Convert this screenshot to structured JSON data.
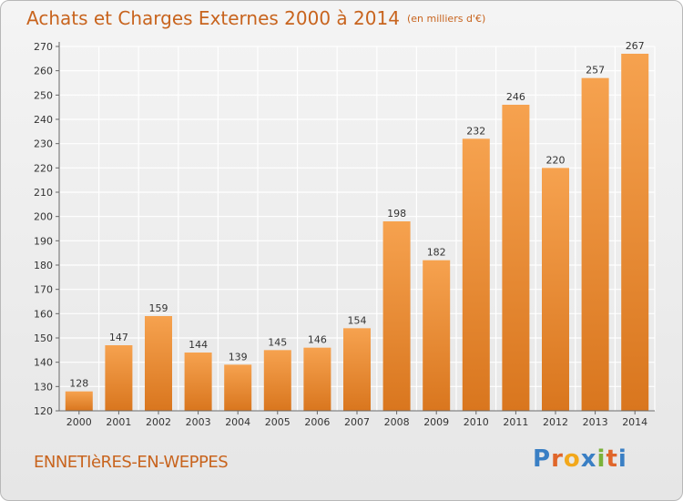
{
  "title": "Achats et Charges Externes 2000 à 2014",
  "subtitle": "(en milliers d'€)",
  "commune": "ENNETIèRES-EN-WEPPES",
  "logo": {
    "letters": [
      "P",
      "r",
      "o",
      "x",
      "i",
      "t",
      "i"
    ],
    "colors": [
      "#3a7fc4",
      "#e0662a",
      "#f2a81c",
      "#3a7fc4",
      "#7bb23a",
      "#e0662a",
      "#3a7fc4"
    ]
  },
  "colors": {
    "bar_top": "#f6a24f",
    "bar_bottom": "#d9761e",
    "text_accent": "#c8641e",
    "grid": "#ffffff"
  },
  "chart_data": {
    "type": "bar",
    "title": "Achats et Charges Externes 2000 à 2014",
    "subtitle": "(en milliers d'€)",
    "categories": [
      "2000",
      "2001",
      "2002",
      "2003",
      "2004",
      "2005",
      "2006",
      "2007",
      "2008",
      "2009",
      "2010",
      "2011",
      "2012",
      "2013",
      "2014"
    ],
    "values": [
      128,
      147,
      159,
      144,
      139,
      145,
      146,
      154,
      198,
      182,
      232,
      246,
      220,
      257,
      267
    ],
    "ylim": [
      120,
      270
    ],
    "yticks": [
      120,
      130,
      140,
      150,
      160,
      170,
      180,
      190,
      200,
      210,
      220,
      230,
      240,
      250,
      260,
      270
    ],
    "grid": true,
    "data_labels": true
  }
}
